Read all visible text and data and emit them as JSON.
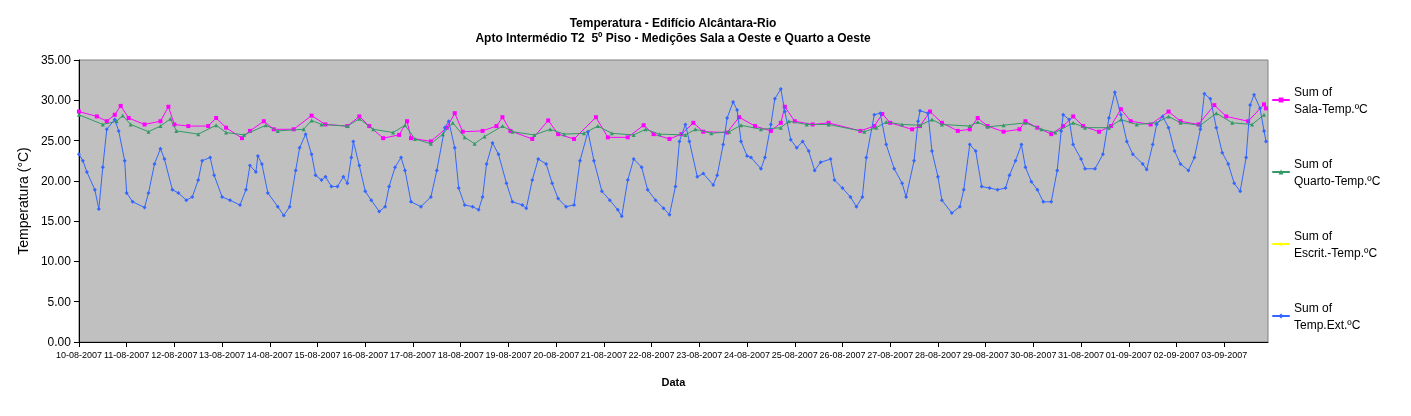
{
  "chart_data": {
    "type": "line",
    "title": "Temperatura - Edifício Alcântara-Rio",
    "subtitle": "Apto Intermédio T2  5º Piso - Medições Sala a Oeste e Quarto a Oeste",
    "xlabel": "Data",
    "ylabel": "Temperatura (°C)",
    "legend": "right",
    "xlim": [
      "2007-08-10T00:00",
      "2007-09-03T22:00"
    ],
    "ylim": [
      0,
      35
    ],
    "yticks": [
      {
        "value": 0,
        "label": "0.00"
      },
      {
        "value": 5,
        "label": "5.00"
      },
      {
        "value": 10,
        "label": "10.00"
      },
      {
        "value": 15,
        "label": "15.00"
      },
      {
        "value": 20,
        "label": "20.00"
      },
      {
        "value": 25,
        "label": "25.00"
      },
      {
        "value": 30,
        "label": "30.00"
      },
      {
        "value": 35,
        "label": "35.00"
      }
    ],
    "xticks": [
      {
        "value": "2007-08-10",
        "label": "10-08-2007"
      },
      {
        "value": "2007-08-11",
        "label": "11-08-2007"
      },
      {
        "value": "2007-08-12",
        "label": "12-08-2007"
      },
      {
        "value": "2007-08-13",
        "label": "13-08-2007"
      },
      {
        "value": "2007-08-14",
        "label": "14-08-2007"
      },
      {
        "value": "2007-08-15",
        "label": "15-08-2007"
      },
      {
        "value": "2007-08-16",
        "label": "16-08-2007"
      },
      {
        "value": "2007-08-17",
        "label": "17-08-2007"
      },
      {
        "value": "2007-08-18",
        "label": "18-08-2007"
      },
      {
        "value": "2007-08-19",
        "label": "19-08-2007"
      },
      {
        "value": "2007-08-20",
        "label": "20-08-2007"
      },
      {
        "value": "2007-08-21",
        "label": "21-08-2007"
      },
      {
        "value": "2007-08-22",
        "label": "22-08-2007"
      },
      {
        "value": "2007-08-23",
        "label": "23-08-2007"
      },
      {
        "value": "2007-08-24",
        "label": "24-08-2007"
      },
      {
        "value": "2007-08-25",
        "label": "25-08-2007"
      },
      {
        "value": "2007-08-26",
        "label": "26-08-2007"
      },
      {
        "value": "2007-08-27",
        "label": "27-08-2007"
      },
      {
        "value": "2007-08-28",
        "label": "28-08-2007"
      },
      {
        "value": "2007-08-29",
        "label": "29-08-2007"
      },
      {
        "value": "2007-08-30",
        "label": "30-08-2007"
      },
      {
        "value": "2007-08-31",
        "label": "31-08-2007"
      },
      {
        "value": "2007-09-01",
        "label": "01-09-2007"
      },
      {
        "value": "2007-09-02",
        "label": "02-09-2007"
      },
      {
        "value": "2007-09-03",
        "label": "03-09-2007"
      }
    ],
    "series": [
      {
        "name": "Sum of Sala-Temp.ºC",
        "color": "#ff00ff",
        "marker": "square",
        "x": [
          "2007-08-10T00:00",
          "2007-08-10T09:00",
          "2007-08-10T14:00",
          "2007-08-10T18:00",
          "2007-08-10T21:00",
          "2007-08-11T01:00",
          "2007-08-11T09:00",
          "2007-08-11T17:00",
          "2007-08-11T21:00",
          "2007-08-12T00:00",
          "2007-08-12T07:00",
          "2007-08-12T17:00",
          "2007-08-12T21:00",
          "2007-08-13T02:00",
          "2007-08-13T10:00",
          "2007-08-13T14:00",
          "2007-08-13T21:00",
          "2007-08-14T02:00",
          "2007-08-14T12:00",
          "2007-08-14T21:00",
          "2007-08-15T04:00",
          "2007-08-15T15:00",
          "2007-08-15T21:00",
          "2007-08-16T02:00",
          "2007-08-16T09:00",
          "2007-08-16T17:00",
          "2007-08-16T21:00",
          "2007-08-16T23:00",
          "2007-08-17T09:00",
          "2007-08-17T17:00",
          "2007-08-17T21:00",
          "2007-08-18T01:00",
          "2007-08-18T11:00",
          "2007-08-18T18:00",
          "2007-08-18T21:00",
          "2007-08-19T01:00",
          "2007-08-19T12:00",
          "2007-08-19T20:00",
          "2007-08-20T01:00",
          "2007-08-20T09:00",
          "2007-08-20T20:00",
          "2007-08-21T02:00",
          "2007-08-21T12:00",
          "2007-08-21T20:00",
          "2007-08-22T01:00",
          "2007-08-22T09:00",
          "2007-08-22T15:00",
          "2007-08-22T21:00",
          "2007-08-23T02:00",
          "2007-08-23T14:00",
          "2007-08-23T20:00",
          "2007-08-24T04:00",
          "2007-08-24T12:00",
          "2007-08-24T17:00",
          "2007-08-24T19:00",
          "2007-08-25T00:00",
          "2007-08-25T09:00",
          "2007-08-25T17:00",
          "2007-08-26T09:00",
          "2007-08-26T16:00",
          "2007-08-26T20:00",
          "2007-08-27T00:00",
          "2007-08-27T11:00",
          "2007-08-27T15:00",
          "2007-08-27T20:00",
          "2007-08-28T02:00",
          "2007-08-28T10:00",
          "2007-08-28T16:00",
          "2007-08-28T20:00",
          "2007-08-29T01:00",
          "2007-08-29T09:00",
          "2007-08-29T17:00",
          "2007-08-29T20:00",
          "2007-08-30T02:00",
          "2007-08-30T09:00",
          "2007-08-30T15:00",
          "2007-08-30T20:00",
          "2007-08-31T01:00",
          "2007-08-31T09:00",
          "2007-08-31T15:00",
          "2007-08-31T20:00",
          "2007-09-01T01:00",
          "2007-09-01T11:00",
          "2007-09-01T20:00",
          "2007-09-02T02:00",
          "2007-09-02T11:00",
          "2007-09-02T19:00",
          "2007-09-03T01:00",
          "2007-09-03T12:00",
          "2007-09-03T20:00",
          "2007-09-03T21:00"
        ],
        "values": [
          28.6,
          28.0,
          27.4,
          28.2,
          29.3,
          27.8,
          27.0,
          27.4,
          29.2,
          27.0,
          26.8,
          26.8,
          27.8,
          26.6,
          25.3,
          26.2,
          27.4,
          26.4,
          26.4,
          28.1,
          27.0,
          26.8,
          28.0,
          26.8,
          25.3,
          25.7,
          27.4,
          25.3,
          24.9,
          26.6,
          28.4,
          26.1,
          26.2,
          26.8,
          27.9,
          26.2,
          25.2,
          27.5,
          25.8,
          25.2,
          27.9,
          25.4,
          25.4,
          26.9,
          25.8,
          25.2,
          25.8,
          27.2,
          26.1,
          26.0,
          27.9,
          26.8,
          26.2,
          27.2,
          29.2,
          27.4,
          27.0,
          27.2,
          26.2,
          26.8,
          28.3,
          27.2,
          26.4,
          26.8,
          28.6,
          27.2,
          26.2,
          26.4,
          27.8,
          26.8,
          26.1,
          26.4,
          27.4,
          26.6,
          25.8,
          26.8,
          28.0,
          26.8,
          26.1,
          26.8,
          28.9,
          27.4,
          27.0,
          28.6,
          27.4,
          27.0,
          29.4,
          28.0,
          27.4,
          29.5,
          29.0
        ]
      },
      {
        "name": "Sum of Quarto-Temp.ºC",
        "color": "#339966",
        "marker": "triangle",
        "x": [
          "2007-08-10T00:00",
          "2007-08-10T12:00",
          "2007-08-10T19:00",
          "2007-08-10T22:00",
          "2007-08-11T02:00",
          "2007-08-11T11:00",
          "2007-08-11T17:00",
          "2007-08-11T22:00",
          "2007-08-12T01:00",
          "2007-08-12T12:00",
          "2007-08-12T21:00",
          "2007-08-13T02:00",
          "2007-08-13T11:00",
          "2007-08-13T22:00",
          "2007-08-14T04:00",
          "2007-08-14T17:00",
          "2007-08-14T21:00",
          "2007-08-15T02:00",
          "2007-08-15T15:00",
          "2007-08-15T21:00",
          "2007-08-16T04:00",
          "2007-08-16T14:00",
          "2007-08-16T20:00",
          "2007-08-17T01:00",
          "2007-08-17T09:00",
          "2007-08-17T15:00",
          "2007-08-17T20:00",
          "2007-08-18T02:00",
          "2007-08-18T07:00",
          "2007-08-18T12:00",
          "2007-08-18T21:00",
          "2007-08-19T02:00",
          "2007-08-19T13:00",
          "2007-08-19T21:00",
          "2007-08-20T04:00",
          "2007-08-20T14:00",
          "2007-08-20T21:00",
          "2007-08-21T04:00",
          "2007-08-21T15:00",
          "2007-08-21T21:00",
          "2007-08-22T04:00",
          "2007-08-22T17:00",
          "2007-08-22T22:00",
          "2007-08-23T06:00",
          "2007-08-23T15:00",
          "2007-08-23T21:00",
          "2007-08-24T07:00",
          "2007-08-24T17:00",
          "2007-08-24T21:00",
          "2007-08-25T06:00",
          "2007-08-25T17:00",
          "2007-08-26T11:00",
          "2007-08-26T17:00",
          "2007-08-26T22:00",
          "2007-08-27T06:00",
          "2007-08-27T15:00",
          "2007-08-27T21:00",
          "2007-08-28T02:00",
          "2007-08-28T16:00",
          "2007-08-28T20:00",
          "2007-08-29T01:00",
          "2007-08-29T09:00",
          "2007-08-29T20:00",
          "2007-08-30T04:00",
          "2007-08-30T11:00",
          "2007-08-30T20:00",
          "2007-08-31T02:00",
          "2007-08-31T14:00",
          "2007-08-31T20:00",
          "2007-09-01T04:00",
          "2007-09-01T14:00",
          "2007-09-01T20:00",
          "2007-09-02T02:00",
          "2007-09-02T12:00",
          "2007-09-02T20:00",
          "2007-09-03T04:00",
          "2007-09-03T14:00",
          "2007-09-03T20:00"
        ],
        "values": [
          28.2,
          27.0,
          27.4,
          28.1,
          27.0,
          26.1,
          26.8,
          27.7,
          26.2,
          25.8,
          26.9,
          26.0,
          25.7,
          26.9,
          26.2,
          26.4,
          27.5,
          27.0,
          26.8,
          27.7,
          26.4,
          26.0,
          26.9,
          25.2,
          24.6,
          25.8,
          27.2,
          25.4,
          24.6,
          25.5,
          26.8,
          26.1,
          25.7,
          26.4,
          25.8,
          25.9,
          26.8,
          25.9,
          25.7,
          26.4,
          25.8,
          25.7,
          26.4,
          25.9,
          26.1,
          26.9,
          26.4,
          26.6,
          27.4,
          27.0,
          27.0,
          26.1,
          26.6,
          27.3,
          27.0,
          26.9,
          27.6,
          27.0,
          26.8,
          27.3,
          26.7,
          26.9,
          27.2,
          26.4,
          26.0,
          27.2,
          26.6,
          26.6,
          27.6,
          27.0,
          27.2,
          28.0,
          27.2,
          26.9,
          28.4,
          27.2,
          27.0,
          28.2
        ]
      },
      {
        "name": "Sum of Escrit.-Temp.ºC",
        "color": "#ffff00",
        "marker": "star"
      },
      {
        "name": "Sum of Temp.Ext.ºC",
        "color": "#3366ff",
        "marker": "diamond",
        "x": [
          "2007-08-10T00:00",
          "2007-08-10T02:00",
          "2007-08-10T04:00",
          "2007-08-10T08:00",
          "2007-08-10T10:00",
          "2007-08-10T12:00",
          "2007-08-10T14:00",
          "2007-08-10T18:00",
          "2007-08-10T20:00",
          "2007-08-10T23:00",
          "2007-08-11T00:00",
          "2007-08-11T03:00",
          "2007-08-11T09:00",
          "2007-08-11T11:00",
          "2007-08-11T14:00",
          "2007-08-11T17:00",
          "2007-08-11T19:00",
          "2007-08-11T23:00",
          "2007-08-12T02:00",
          "2007-08-12T06:00",
          "2007-08-12T09:00",
          "2007-08-12T12:00",
          "2007-08-12T14:00",
          "2007-08-12T18:00",
          "2007-08-12T20:00",
          "2007-08-13T00:00",
          "2007-08-13T04:00",
          "2007-08-13T09:00",
          "2007-08-13T12:00",
          "2007-08-13T14:00",
          "2007-08-13T17:00",
          "2007-08-13T18:00",
          "2007-08-13T20:00",
          "2007-08-13T23:00",
          "2007-08-14T04:00",
          "2007-08-14T07:00",
          "2007-08-14T10:00",
          "2007-08-14T13:00",
          "2007-08-14T15:00",
          "2007-08-14T18:00",
          "2007-08-14T21:00",
          "2007-08-14T23:00",
          "2007-08-15T02:00",
          "2007-08-15T04:00",
          "2007-08-15T07:00",
          "2007-08-15T10:00",
          "2007-08-15T13:00",
          "2007-08-15T15:00",
          "2007-08-15T17:00",
          "2007-08-15T18:00",
          "2007-08-15T21:00",
          "2007-08-16T00:00",
          "2007-08-16T03:00",
          "2007-08-16T07:00",
          "2007-08-16T10:00",
          "2007-08-16T12:00",
          "2007-08-16T15:00",
          "2007-08-16T18:00",
          "2007-08-16T20:00",
          "2007-08-16T23:00",
          "2007-08-17T04:00",
          "2007-08-17T09:00",
          "2007-08-17T12:00",
          "2007-08-17T16:00",
          "2007-08-17T18:00",
          "2007-08-17T21:00",
          "2007-08-17T23:00",
          "2007-08-18T02:00",
          "2007-08-18T06:00",
          "2007-08-18T09:00",
          "2007-08-18T11:00",
          "2007-08-18T13:00",
          "2007-08-18T16:00",
          "2007-08-18T19:00",
          "2007-08-18T23:00",
          "2007-08-19T02:00",
          "2007-08-19T07:00",
          "2007-08-19T09:00",
          "2007-08-19T12:00",
          "2007-08-19T15:00",
          "2007-08-19T19:00",
          "2007-08-19T22:00",
          "2007-08-20T01:00",
          "2007-08-20T05:00",
          "2007-08-20T09:00",
          "2007-08-20T12:00",
          "2007-08-20T16:00",
          "2007-08-20T19:00",
          "2007-08-20T23:00",
          "2007-08-21T03:00",
          "2007-08-21T07:00",
          "2007-08-21T09:00",
          "2007-08-21T12:00",
          "2007-08-21T15:00",
          "2007-08-21T19:00",
          "2007-08-21T22:00",
          "2007-08-22T02:00",
          "2007-08-22T06:00",
          "2007-08-22T09:00",
          "2007-08-22T12:00",
          "2007-08-22T14:00",
          "2007-08-22T17:00",
          "2007-08-22T19:00",
          "2007-08-22T23:00",
          "2007-08-23T02:00",
          "2007-08-23T07:00",
          "2007-08-23T09:00",
          "2007-08-23T12:00",
          "2007-08-23T14:00",
          "2007-08-23T17:00",
          "2007-08-23T19:00",
          "2007-08-23T21:00",
          "2007-08-24T00:00",
          "2007-08-24T02:00",
          "2007-08-24T07:00",
          "2007-08-24T09:00",
          "2007-08-24T12:00",
          "2007-08-24T14:00",
          "2007-08-24T17:00",
          "2007-08-24T19:00",
          "2007-08-24T22:00",
          "2007-08-25T01:00",
          "2007-08-25T04:00",
          "2007-08-25T07:00",
          "2007-08-25T10:00",
          "2007-08-25T13:00",
          "2007-08-25T18:00",
          "2007-08-25T20:00",
          "2007-08-26T00:00",
          "2007-08-26T04:00",
          "2007-08-26T07:00",
          "2007-08-26T10:00",
          "2007-08-26T12:00",
          "2007-08-26T16:00",
          "2007-08-26T19:00",
          "2007-08-26T22:00",
          "2007-08-27T02:00",
          "2007-08-27T06:00",
          "2007-08-27T08:00",
          "2007-08-27T12:00",
          "2007-08-27T14:00",
          "2007-08-27T15:00",
          "2007-08-27T19:00",
          "2007-08-27T21:00",
          "2007-08-28T00:00",
          "2007-08-28T02:00",
          "2007-08-28T07:00",
          "2007-08-28T11:00",
          "2007-08-28T13:00",
          "2007-08-28T16:00",
          "2007-08-28T19:00",
          "2007-08-28T22:00",
          "2007-08-29T02:00",
          "2007-08-29T06:00",
          "2007-08-29T10:00",
          "2007-08-29T12:00",
          "2007-08-29T15:00",
          "2007-08-29T18:00",
          "2007-08-29T20:00",
          "2007-08-29T23:00",
          "2007-08-30T02:00",
          "2007-08-30T05:00",
          "2007-08-30T09:00",
          "2007-08-30T12:00",
          "2007-08-30T14:00",
          "2007-08-30T15:00",
          "2007-08-30T18:00",
          "2007-08-30T20:00",
          "2007-08-31T00:00",
          "2007-08-31T02:00",
          "2007-08-31T07:00",
          "2007-08-31T11:00",
          "2007-08-31T14:00",
          "2007-08-31T17:00",
          "2007-08-31T20:00",
          "2007-08-31T23:00",
          "2007-09-01T02:00",
          "2007-09-01T07:00",
          "2007-09-01T09:00",
          "2007-09-01T12:00",
          "2007-09-01T14:00",
          "2007-09-01T17:00",
          "2007-09-01T20:00",
          "2007-09-01T23:00",
          "2007-09-02T02:00",
          "2007-09-02T06:00",
          "2007-09-02T09:00",
          "2007-09-02T12:00",
          "2007-09-02T14:00",
          "2007-09-02T17:00",
          "2007-09-02T20:00",
          "2007-09-02T23:00",
          "2007-09-03T02:00",
          "2007-09-03T05:00",
          "2007-09-03T08:00",
          "2007-09-03T11:00",
          "2007-09-03T13:00",
          "2007-09-03T15:00",
          "2007-09-03T18:00",
          "2007-09-03T20:00",
          "2007-09-03T21:00"
        ],
        "values": [
          23.3,
          22.5,
          21.1,
          18.9,
          16.5,
          21.7,
          26.4,
          27.6,
          26.2,
          22.5,
          18.5,
          17.4,
          16.7,
          18.5,
          22.1,
          24.0,
          22.7,
          18.9,
          18.5,
          17.6,
          18.0,
          20.1,
          22.5,
          22.9,
          20.7,
          18.0,
          17.6,
          17.0,
          18.9,
          21.9,
          21.1,
          23.1,
          22.1,
          18.5,
          16.8,
          15.7,
          16.8,
          21.3,
          24.1,
          25.8,
          23.3,
          20.7,
          20.1,
          20.5,
          19.3,
          19.3,
          20.5,
          19.7,
          22.9,
          24.9,
          21.9,
          18.7,
          17.6,
          16.2,
          16.8,
          19.3,
          21.7,
          22.9,
          21.3,
          17.4,
          16.8,
          18.0,
          21.3,
          26.6,
          27.4,
          24.1,
          19.1,
          17.0,
          16.8,
          16.4,
          18.0,
          22.1,
          24.7,
          23.3,
          19.7,
          17.4,
          17.0,
          16.6,
          20.1,
          22.7,
          22.1,
          19.7,
          17.8,
          16.8,
          17.0,
          22.5,
          26.1,
          22.5,
          18.7,
          17.6,
          16.4,
          15.6,
          20.1,
          22.7,
          21.7,
          18.9,
          17.6,
          16.6,
          15.8,
          19.3,
          24.9,
          27.0,
          24.9,
          20.5,
          20.9,
          19.5,
          20.7,
          24.5,
          27.8,
          29.8,
          28.8,
          24.9,
          23.1,
          22.9,
          21.5,
          22.9,
          27.0,
          30.2,
          31.4,
          28.6,
          25.1,
          24.1,
          24.9,
          23.7,
          21.3,
          22.3,
          22.7,
          20.1,
          19.1,
          18.0,
          16.8,
          18.0,
          22.9,
          28.2,
          28.4,
          24.5,
          21.5,
          19.7,
          18.0,
          22.5,
          27.4,
          28.7,
          28.4,
          23.7,
          20.5,
          17.6,
          16.0,
          16.8,
          18.9,
          24.5,
          23.7,
          19.3,
          19.1,
          18.9,
          19.1,
          20.7,
          22.5,
          24.5,
          21.7,
          19.9,
          18.9,
          17.4,
          17.4,
          21.3,
          26.2,
          28.2,
          27.6,
          24.5,
          22.7,
          21.5,
          21.5,
          23.3,
          27.8,
          31.0,
          28.2,
          24.9,
          23.3,
          22.1,
          21.4,
          24.5,
          27.0,
          28.0,
          26.6,
          23.7,
          22.1,
          21.3,
          22.9,
          26.4,
          30.8,
          30.2,
          26.6,
          23.5,
          22.1,
          19.7,
          18.7,
          22.9,
          29.4,
          30.7,
          29.0,
          26.2,
          24.9
        ]
      }
    ]
  }
}
